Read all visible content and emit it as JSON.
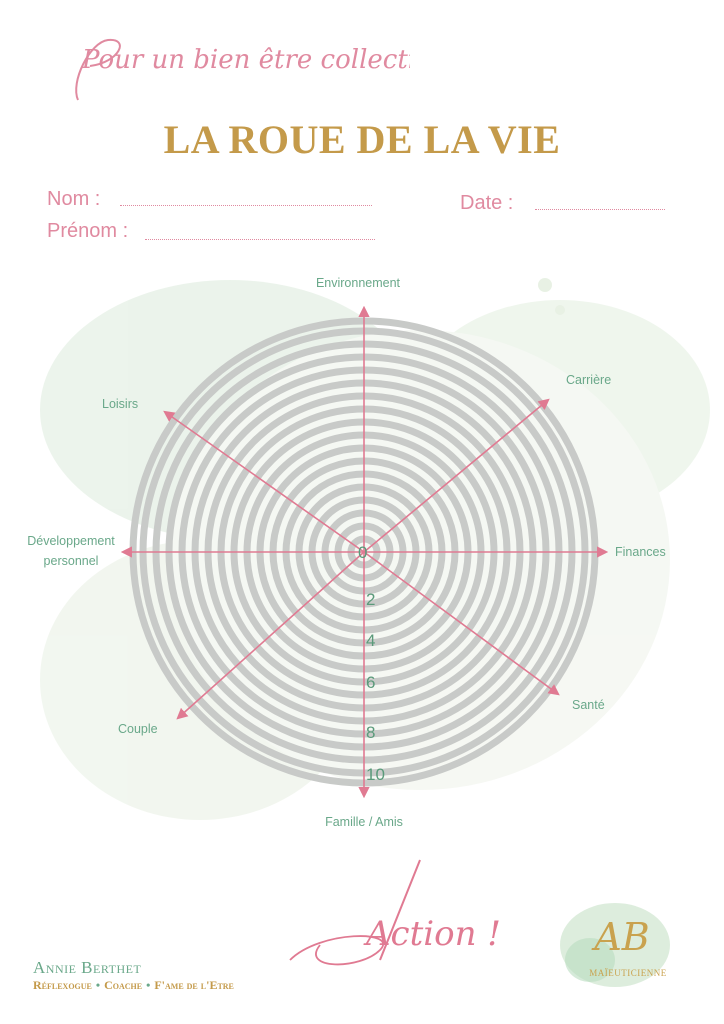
{
  "header": {
    "script_title": "Pour un bien être collectif",
    "main_title": "LA ROUE DE LA VIE"
  },
  "form": {
    "nom_label": "Nom :",
    "prenom_label": "Prénom :",
    "date_label": "Date :"
  },
  "wheel": {
    "axes": [
      "Environnement",
      "Carrière",
      "Finances",
      "Santé",
      "Famille / Amis",
      "Couple",
      "Développement personnel",
      "Loisirs"
    ],
    "development_label_line1": "Développement",
    "development_label_line2": "personnel",
    "scale": [
      "0",
      "2",
      "4",
      "6",
      "8",
      "10"
    ],
    "colors": {
      "rings": "#c8cac8",
      "axes": "#e07a92",
      "labels": "#6aa88a",
      "scale": "#5a9a7a"
    }
  },
  "footer": {
    "name": "Annie Berthet",
    "role1": "Réflexogue",
    "role2": "Coache",
    "role3": "F'ame de l'Etre",
    "separator": "•",
    "action": "Action !",
    "logo_monogram": "AB",
    "logo_text": "MAÏEUTICIENNE"
  }
}
